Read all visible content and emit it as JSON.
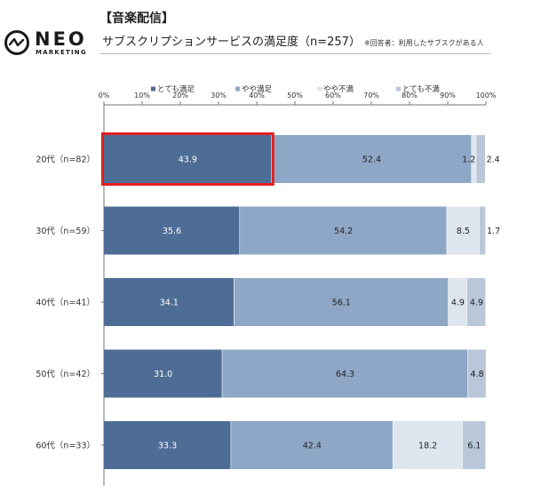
{
  "header": {
    "logo_text": "NEO",
    "logo_sub": "MARKETING",
    "title_bracket": "【音楽配信】",
    "title_main": "サブスクリプションサービスの満足度（n=257）",
    "title_note": "※回答者：利用したサブスクがある人"
  },
  "chart_data": {
    "type": "bar",
    "orientation": "horizontal",
    "stacked": true,
    "title": "サブスクリプションサービスの満足度（n=257）",
    "xlim": [
      0,
      100
    ],
    "x_ticks": [
      "0%",
      "10%",
      "20%",
      "30%",
      "40%",
      "50%",
      "60%",
      "70%",
      "80%",
      "90%",
      "100%"
    ],
    "categories": [
      "20代（n=82）",
      "30代（n=59）",
      "40代（n=41）",
      "50代（n=42）",
      "60代（n=33）"
    ],
    "series": [
      {
        "name": "とても満足",
        "color": "#4e6d96",
        "label_color": "#ffffff",
        "values": [
          43.9,
          35.6,
          34.1,
          31.0,
          33.3
        ],
        "labels": [
          "43.9",
          "35.6",
          "34.1",
          "31.0",
          "33.3"
        ]
      },
      {
        "name": "やや満足",
        "color": "#8fa7c6",
        "label_color": "#222222",
        "values": [
          52.4,
          54.2,
          56.1,
          64.3,
          42.4
        ],
        "labels": [
          "52.4",
          "54.2",
          "56.1",
          "64.3",
          "42.4"
        ]
      },
      {
        "name": "やや不満",
        "color": "#dde5ee",
        "label_color": "#222222",
        "values": [
          1.2,
          8.5,
          4.9,
          0,
          18.2
        ],
        "labels": [
          "1.2",
          "8.5",
          "4.9",
          "",
          "18.2"
        ]
      },
      {
        "name": "とても不満",
        "color": "#b9c7d9",
        "label_color": "#222222",
        "values": [
          2.4,
          1.7,
          4.9,
          4.8,
          6.1
        ],
        "labels": [
          "2.4",
          "1.7",
          "4.9",
          "4.8",
          "6.1"
        ]
      }
    ],
    "highlight": {
      "category_index": 0,
      "series_index": 0,
      "color": "#e0201f"
    },
    "legend_position": "top",
    "grid": false
  }
}
